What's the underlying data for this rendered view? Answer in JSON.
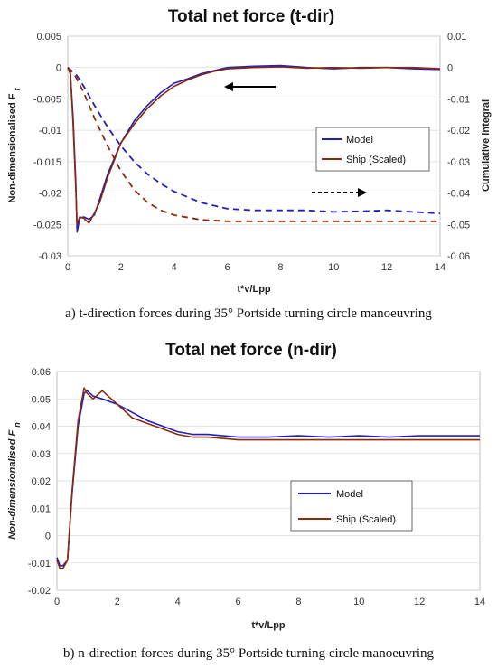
{
  "chart_data": [
    {
      "type": "line",
      "title": "Total net force (t-dir)",
      "xlabel": "t*v/Lpp",
      "ylabel": "Non-dimensionalised F",
      "ylabel_sub": "t",
      "y2label": "Cumulative integral",
      "xlim": [
        0,
        14
      ],
      "ylim": [
        -0.03,
        0.005
      ],
      "y2lim": [
        -0.06,
        0.01
      ],
      "xticks": [
        "0",
        "2",
        "4",
        "6",
        "8",
        "10",
        "12",
        "14"
      ],
      "yticks": [
        "0.005",
        "0",
        "-0.005",
        "-0.01",
        "-0.015",
        "-0.02",
        "-0.025",
        "-0.03"
      ],
      "y2ticks": [
        "0.01",
        "0",
        "-0.01",
        "-0.02",
        "-0.03",
        "-0.04",
        "-0.05",
        "-0.06"
      ],
      "grid": true,
      "legend_position": "center-right",
      "caption": "a) t-direction forces during 35° Portside turning circle manoeuvring",
      "series": [
        {
          "name": "Model",
          "color": "#1f1fbf",
          "style": "solid",
          "axis": "left",
          "x": [
            0,
            0.1,
            0.2,
            0.3,
            0.35,
            0.45,
            0.6,
            0.8,
            1.0,
            1.2,
            1.5,
            2.0,
            2.5,
            3.0,
            3.5,
            4.0,
            4.5,
            5.0,
            5.5,
            6.0,
            7.0,
            8.0,
            9.0,
            10.0,
            11.0,
            12.0,
            13.0,
            14.0
          ],
          "y": [
            0,
            -0.001,
            -0.008,
            -0.018,
            -0.0262,
            -0.024,
            -0.0238,
            -0.0242,
            -0.0235,
            -0.021,
            -0.017,
            -0.012,
            -0.0085,
            -0.006,
            -0.004,
            -0.0025,
            -0.0018,
            -0.001,
            -0.0005,
            0,
            0.0002,
            0.0003,
            0,
            -0.0002,
            0,
            0,
            -0.0002,
            -0.0003
          ]
        },
        {
          "name": "Ship (Scaled)",
          "color": "#8b2a0a",
          "style": "solid",
          "axis": "left",
          "x": [
            0,
            0.1,
            0.2,
            0.3,
            0.35,
            0.45,
            0.6,
            0.8,
            1.0,
            1.2,
            1.5,
            2.0,
            2.5,
            3.0,
            3.5,
            4.0,
            4.5,
            5.0,
            5.5,
            6.0,
            7.0,
            8.0,
            9.0,
            10.0,
            11.0,
            12.0,
            13.0,
            14.0
          ],
          "y": [
            0,
            -0.001,
            -0.009,
            -0.019,
            -0.025,
            -0.0238,
            -0.024,
            -0.0248,
            -0.0232,
            -0.0215,
            -0.0175,
            -0.012,
            -0.009,
            -0.0065,
            -0.0045,
            -0.003,
            -0.002,
            -0.0012,
            -0.0006,
            -0.0002,
            0,
            0.0001,
            -0.0001,
            0,
            -0.0001,
            0,
            0,
            -0.0002
          ]
        },
        {
          "name": "Model",
          "color": "#1f1fbf",
          "style": "dashed",
          "axis": "right",
          "x": [
            0,
            0.3,
            0.6,
            1.0,
            1.5,
            2.0,
            2.5,
            3.0,
            3.5,
            4.0,
            5.0,
            6.0,
            7.0,
            8.0,
            9.0,
            10.0,
            11.0,
            12.0,
            13.0,
            14.0
          ],
          "y": [
            0,
            -0.002,
            -0.006,
            -0.012,
            -0.019,
            -0.025,
            -0.03,
            -0.034,
            -0.037,
            -0.0395,
            -0.043,
            -0.045,
            -0.0455,
            -0.0455,
            -0.0455,
            -0.046,
            -0.0458,
            -0.0455,
            -0.046,
            -0.0465
          ]
        },
        {
          "name": "Ship (Scaled)",
          "color": "#8b2a0a",
          "style": "dashed",
          "axis": "right",
          "x": [
            0,
            0.3,
            0.6,
            1.0,
            1.5,
            2.0,
            2.5,
            3.0,
            3.5,
            4.0,
            5.0,
            6.0,
            7.0,
            8.0,
            9.0,
            10.0,
            11.0,
            12.0,
            13.0,
            14.0
          ],
          "y": [
            0,
            -0.003,
            -0.008,
            -0.016,
            -0.025,
            -0.033,
            -0.039,
            -0.043,
            -0.0455,
            -0.047,
            -0.0485,
            -0.049,
            -0.049,
            -0.049,
            -0.049,
            -0.049,
            -0.049,
            -0.049,
            -0.049,
            -0.049
          ]
        }
      ]
    },
    {
      "type": "line",
      "title": "Total net force (n-dir)",
      "xlabel": "t*v/Lpp",
      "ylabel": "Non-dimensionalised F",
      "ylabel_sub": "n",
      "xlim": [
        0,
        14
      ],
      "ylim": [
        -0.02,
        0.06
      ],
      "xticks": [
        "0",
        "2",
        "4",
        "6",
        "8",
        "10",
        "12",
        "14"
      ],
      "yticks": [
        "0.06",
        "0.05",
        "0.04",
        "0.03",
        "0.02",
        "0.01",
        "0",
        "-0.01",
        "-0.02"
      ],
      "grid": true,
      "legend_position": "center-right",
      "caption": "b) n-direction forces during 35° Portside turning circle manoeuvring",
      "series": [
        {
          "name": "Model",
          "color": "#1f1fbf",
          "style": "solid",
          "x": [
            0,
            0.1,
            0.2,
            0.35,
            0.5,
            0.7,
            0.9,
            1.0,
            1.2,
            1.5,
            2.0,
            2.5,
            3.0,
            3.5,
            4.0,
            4.5,
            5.0,
            6.0,
            7.0,
            8.0,
            9.0,
            10.0,
            11.0,
            12.0,
            13.0,
            14.0
          ],
          "y": [
            -0.008,
            -0.011,
            -0.011,
            -0.009,
            0.015,
            0.04,
            0.052,
            0.053,
            0.051,
            0.05,
            0.048,
            0.045,
            0.042,
            0.04,
            0.038,
            0.037,
            0.037,
            0.036,
            0.036,
            0.0365,
            0.036,
            0.0365,
            0.036,
            0.0365,
            0.0365,
            0.0365
          ]
        },
        {
          "name": "Ship (Scaled)",
          "color": "#8b2a0a",
          "style": "solid",
          "x": [
            0,
            0.1,
            0.2,
            0.35,
            0.5,
            0.7,
            0.9,
            1.0,
            1.2,
            1.5,
            1.8,
            2.0,
            2.5,
            3.0,
            3.5,
            4.0,
            4.5,
            5.0,
            6.0,
            7.0,
            8.0,
            9.0,
            10.0,
            11.0,
            12.0,
            13.0,
            14.0
          ],
          "y": [
            -0.009,
            -0.012,
            -0.012,
            -0.009,
            0.016,
            0.042,
            0.054,
            0.052,
            0.05,
            0.053,
            0.05,
            0.048,
            0.043,
            0.041,
            0.039,
            0.037,
            0.036,
            0.036,
            0.035,
            0.035,
            0.035,
            0.035,
            0.035,
            0.035,
            0.035,
            0.035,
            0.035
          ]
        }
      ]
    }
  ]
}
